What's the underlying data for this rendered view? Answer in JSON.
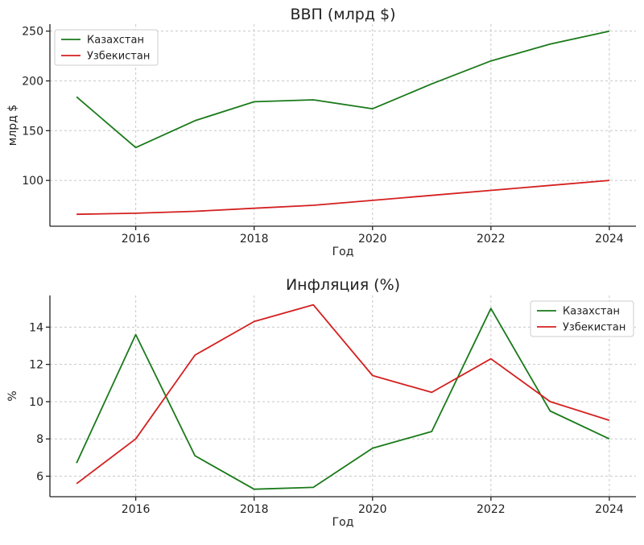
{
  "chart_data": [
    {
      "type": "line",
      "title": "ВВП (млрд $)",
      "xlabel": "Год",
      "ylabel": "млрд $",
      "x": [
        2015,
        2016,
        2017,
        2018,
        2019,
        2020,
        2021,
        2022,
        2023,
        2024
      ],
      "xlim": [
        2014.55,
        2024.45
      ],
      "ylim": [
        54,
        257
      ],
      "xticks": [
        2016,
        2018,
        2020,
        2022,
        2024
      ],
      "yticks": [
        100,
        150,
        200,
        250
      ],
      "grid": true,
      "legend": "top-left",
      "series": [
        {
          "name": "Казахстан",
          "color": "#1a7a1a",
          "values": [
            184,
            133,
            160,
            179,
            181,
            172,
            197,
            220,
            237,
            250
          ]
        },
        {
          "name": "Узбекистан",
          "color": "#d42020",
          "values": [
            66,
            67,
            69,
            72,
            75,
            80,
            85,
            90,
            95,
            100
          ]
        }
      ]
    },
    {
      "type": "line",
      "title": "Инфляция (%)",
      "xlabel": "Год",
      "ylabel": "%",
      "x": [
        2015,
        2016,
        2017,
        2018,
        2019,
        2020,
        2021,
        2022,
        2023,
        2024
      ],
      "xlim": [
        2014.55,
        2024.45
      ],
      "ylim": [
        4.9,
        15.7
      ],
      "xticks": [
        2016,
        2018,
        2020,
        2022,
        2024
      ],
      "yticks": [
        6,
        8,
        10,
        12,
        14
      ],
      "grid": true,
      "legend": "top-right",
      "series": [
        {
          "name": "Казахстан",
          "color": "#1a7a1a",
          "values": [
            6.7,
            13.6,
            7.1,
            5.3,
            5.4,
            7.5,
            8.4,
            15.0,
            9.5,
            8.0
          ]
        },
        {
          "name": "Узбекистан",
          "color": "#d42020",
          "values": [
            5.6,
            8.0,
            12.5,
            14.3,
            15.2,
            11.4,
            10.5,
            12.3,
            10.0,
            9.0
          ]
        }
      ]
    }
  ]
}
